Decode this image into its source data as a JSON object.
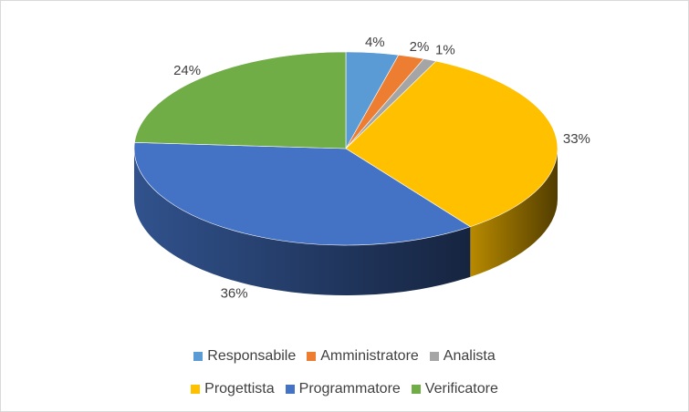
{
  "chart_data": {
    "type": "pie",
    "style": "3d",
    "categories": [
      "Responsabile",
      "Amministratore",
      "Analista",
      "Progettista",
      "Programmatore",
      "Verificatore"
    ],
    "values": [
      4,
      2,
      1,
      33,
      36,
      24
    ],
    "data_labels": [
      "4%",
      "2%",
      "1%",
      "33%",
      "36%",
      "24%"
    ],
    "colors": [
      "#5B9BD5",
      "#ED7D31",
      "#A5A5A5",
      "#FFC000",
      "#4472C4",
      "#70AD47"
    ],
    "legend_position": "bottom",
    "title": ""
  }
}
